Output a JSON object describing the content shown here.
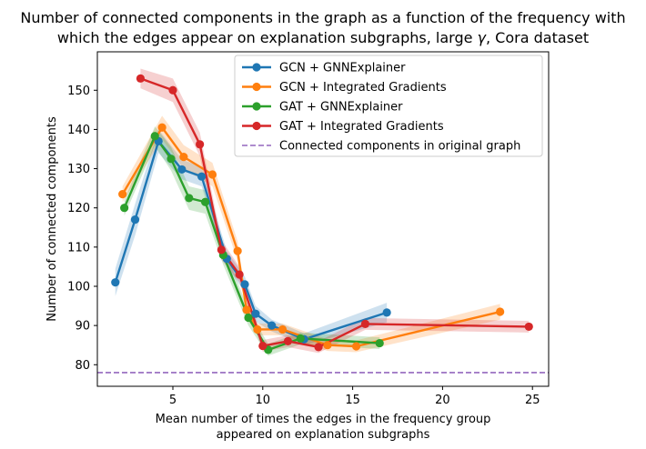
{
  "chart_data": {
    "type": "line",
    "title_line1": "Number of connected components in the graph as a function of the frequency with",
    "title_line2_prefix": "which the edges appear on explanation subgraphs, large ",
    "title_line2_symbol": "γ",
    "title_line2_suffix": ", Cora dataset",
    "xlabel_line1": "Mean number of times the edges in the frequency group",
    "xlabel_line2": "appeared on explanation subgraphs",
    "ylabel": "Number of connected components",
    "xlim": [
      0.8,
      25.9
    ],
    "ylim": [
      74.5,
      159.8
    ],
    "xticks": [
      5,
      10,
      15,
      20,
      25
    ],
    "yticks": [
      80,
      90,
      100,
      110,
      120,
      130,
      140,
      150
    ],
    "grid": false,
    "legend_position": "top-right",
    "reference_line": {
      "name": "Connected components in original graph",
      "y": 78,
      "color": "#9467bd",
      "style": "dashed"
    },
    "series": [
      {
        "name": "GCN + GNNExplainer",
        "color": "#1f77b4",
        "points": [
          [
            1.8,
            101
          ],
          [
            2.9,
            117
          ],
          [
            4.2,
            137
          ],
          [
            5.5,
            129.8
          ],
          [
            6.6,
            128
          ],
          [
            8.0,
            107
          ],
          [
            9.0,
            100.5
          ],
          [
            9.6,
            93
          ],
          [
            10.5,
            90
          ],
          [
            12.3,
            86.5
          ],
          [
            16.9,
            93.3
          ]
        ],
        "band": [
          3.5,
          4,
          3,
          2.5,
          2.5,
          2,
          2,
          2,
          1.5,
          1.5,
          2.5
        ]
      },
      {
        "name": "GCN + Integrated Gradients",
        "color": "#ff7f0e",
        "points": [
          [
            2.2,
            123.5
          ],
          [
            4.4,
            140.5
          ],
          [
            5.6,
            133
          ],
          [
            7.2,
            128.5
          ],
          [
            8.6,
            109
          ],
          [
            9.1,
            94
          ],
          [
            9.7,
            89
          ],
          [
            11.1,
            89
          ],
          [
            13.6,
            85
          ],
          [
            15.2,
            84.7
          ],
          [
            23.2,
            93.5
          ]
        ],
        "band": [
          2,
          3,
          3,
          3,
          2.5,
          2,
          1.5,
          1.5,
          1.5,
          1.5,
          2
        ]
      },
      {
        "name": "GAT + GNNExplainer",
        "color": "#2ca02c",
        "points": [
          [
            2.3,
            120
          ],
          [
            4.0,
            138.3
          ],
          [
            4.9,
            132.5
          ],
          [
            5.9,
            122.5
          ],
          [
            6.8,
            121.5
          ],
          [
            7.8,
            108
          ],
          [
            9.2,
            92
          ],
          [
            10.3,
            83.8
          ],
          [
            12.1,
            86.7
          ],
          [
            16.5,
            85.5
          ]
        ],
        "band": [
          2,
          2.5,
          3,
          3,
          3,
          2.5,
          2,
          1.5,
          1.5,
          1.5
        ]
      },
      {
        "name": "GAT + Integrated Gradients",
        "color": "#d62728",
        "points": [
          [
            3.2,
            153
          ],
          [
            5.0,
            150
          ],
          [
            6.5,
            136.2
          ],
          [
            7.7,
            109.3
          ],
          [
            8.7,
            103
          ],
          [
            10.0,
            84.8
          ],
          [
            11.4,
            86
          ],
          [
            13.1,
            84.5
          ],
          [
            15.7,
            90.4
          ],
          [
            24.8,
            89.7
          ]
        ],
        "band": [
          2.5,
          3,
          3,
          2.5,
          2,
          1.5,
          1.5,
          1.5,
          1.5,
          1.5
        ]
      }
    ]
  }
}
